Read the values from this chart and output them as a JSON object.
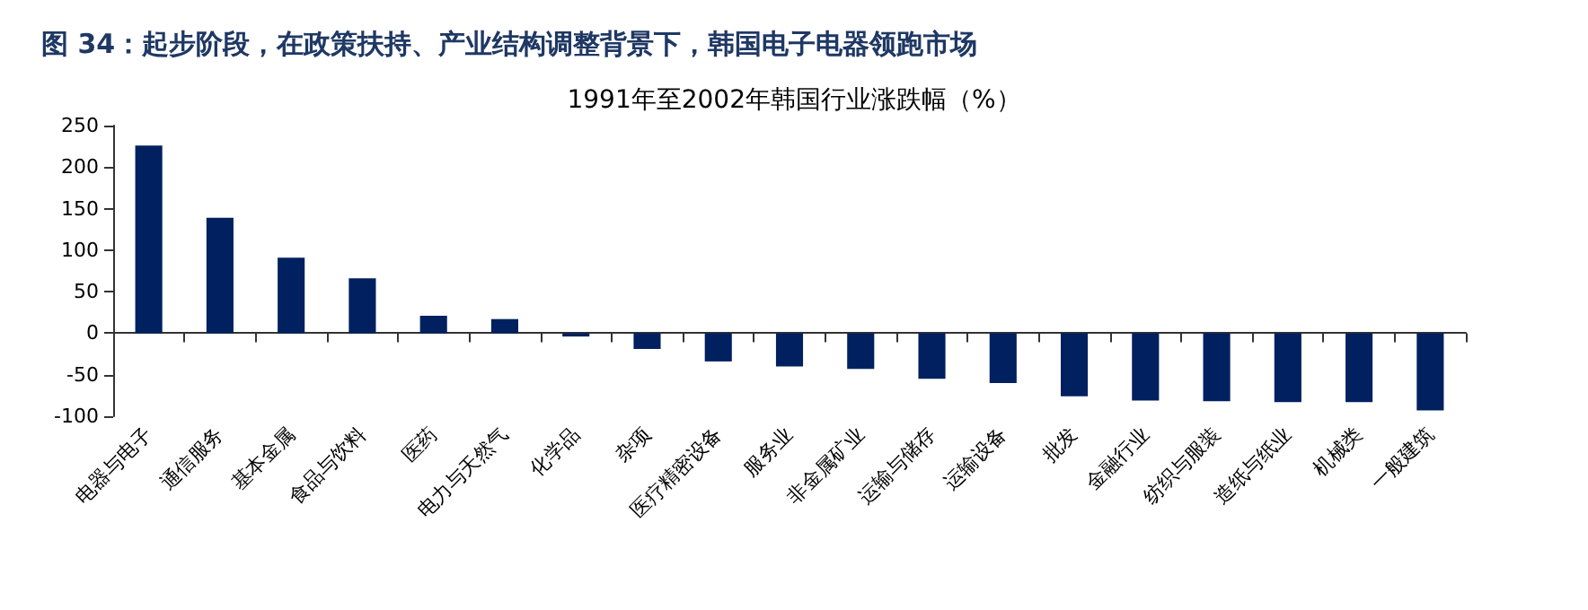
{
  "chart_data": {
    "type": "bar",
    "title": "图 34：起步阶段，在政策扶持、产业结构调整背景下，韩国电子电器领跑市场",
    "subtitle": "1991年至2002年韩国行业涨跌幅（%）",
    "categories": [
      "电器与电子",
      "通信服务",
      "基本金属",
      "食品与饮料",
      "医药",
      "电力与天然气",
      "化学品",
      "杂项",
      "医疗精密设备",
      "服务业",
      "非金属矿业",
      "运输与储存",
      "运输设备",
      "批发",
      "金融行业",
      "纺织与服装",
      "造纸与纸业",
      "机械类",
      "一般建筑"
    ],
    "values": [
      226,
      139,
      91,
      66,
      21,
      17,
      -4,
      -19,
      -34,
      -40,
      -43,
      -55,
      -60,
      -76,
      -81,
      -82,
      -83,
      -83,
      -93
    ],
    "color": "#002060",
    "ylim": [
      -100,
      250
    ],
    "yticks": [
      -100,
      -50,
      0,
      50,
      100,
      150,
      200,
      250
    ]
  }
}
